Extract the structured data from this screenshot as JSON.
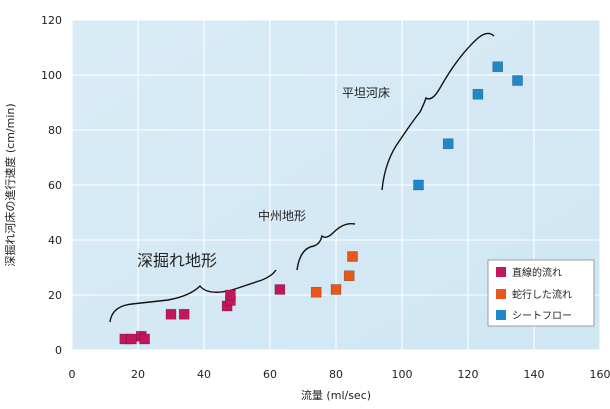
{
  "chart_data": {
    "type": "scatter",
    "xlabel": "流量 (ml/sec)",
    "ylabel": "深掘れ河床の進行速度 (cm/min)",
    "xlim": [
      0,
      160
    ],
    "ylim": [
      0,
      120
    ],
    "xticks": [
      0,
      20,
      40,
      60,
      80,
      100,
      120,
      140,
      160
    ],
    "yticks": [
      0,
      20,
      40,
      60,
      80,
      100,
      120
    ],
    "grid": true,
    "legend_position": "lower-right",
    "series": [
      {
        "name": "直線的流れ",
        "color": "#c2185b",
        "points": [
          {
            "x": 16,
            "y": 4
          },
          {
            "x": 18,
            "y": 4
          },
          {
            "x": 21,
            "y": 5
          },
          {
            "x": 22,
            "y": 4
          },
          {
            "x": 30,
            "y": 13
          },
          {
            "x": 34,
            "y": 13
          },
          {
            "x": 47,
            "y": 16
          },
          {
            "x": 48,
            "y": 18
          },
          {
            "x": 48,
            "y": 20
          },
          {
            "x": 63,
            "y": 22
          }
        ]
      },
      {
        "name": "蛇行した流れ",
        "color": "#e8561a",
        "points": [
          {
            "x": 74,
            "y": 21
          },
          {
            "x": 80,
            "y": 22
          },
          {
            "x": 84,
            "y": 27
          },
          {
            "x": 85,
            "y": 34
          }
        ]
      },
      {
        "name": "シートフロー",
        "color": "#1e88c8",
        "points": [
          {
            "x": 105,
            "y": 60
          },
          {
            "x": 114,
            "y": 75
          },
          {
            "x": 123,
            "y": 93
          },
          {
            "x": 129,
            "y": 103
          },
          {
            "x": 135,
            "y": 98
          }
        ]
      }
    ],
    "annotations": [
      {
        "text": "深掘れ地形"
      },
      {
        "text": "中州地形"
      },
      {
        "text": "平坦河床"
      }
    ]
  }
}
